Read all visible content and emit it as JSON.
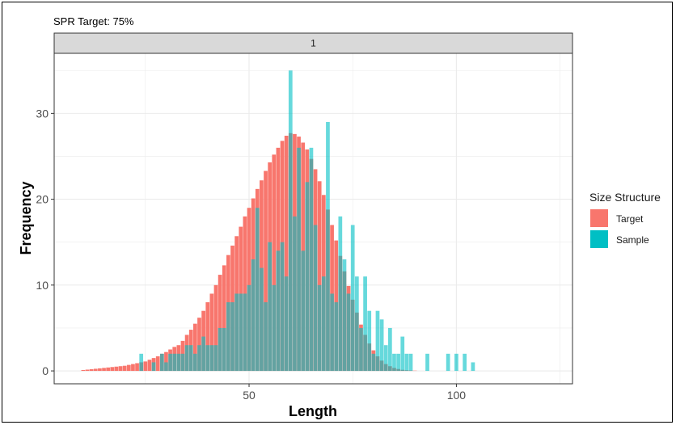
{
  "chart_data": {
    "type": "bar",
    "title": "SPR Target: 75%",
    "facet_label": "1",
    "xlabel": "Length",
    "ylabel": "Frequency",
    "xlim": [
      3,
      128
    ],
    "ylim": [
      -1.5,
      37
    ],
    "x_ticks": [
      50,
      100
    ],
    "y_ticks": [
      0,
      10,
      20,
      30
    ],
    "x_tick_labels": [
      "50",
      "100"
    ],
    "y_tick_labels": [
      "0",
      "10",
      "20",
      "30"
    ],
    "grid": true,
    "legend": {
      "title": "Size Structure",
      "position": "right"
    },
    "series": [
      {
        "name": "Target",
        "color": "#F8766D",
        "x": [
          10,
          11,
          12,
          13,
          14,
          15,
          16,
          17,
          18,
          19,
          20,
          21,
          22,
          23,
          24,
          25,
          26,
          27,
          28,
          29,
          30,
          31,
          32,
          33,
          34,
          35,
          36,
          37,
          38,
          39,
          40,
          41,
          42,
          43,
          44,
          45,
          46,
          47,
          48,
          49,
          50,
          51,
          52,
          53,
          54,
          55,
          56,
          57,
          58,
          59,
          60,
          61,
          62,
          63,
          64,
          65,
          66,
          67,
          68,
          69,
          70,
          71,
          72,
          73,
          74,
          75,
          76,
          77,
          78,
          79,
          80,
          81,
          82,
          83,
          84,
          85,
          86,
          87,
          88,
          89,
          90
        ],
        "values": [
          0.1,
          0.15,
          0.2,
          0.25,
          0.3,
          0.35,
          0.4,
          0.45,
          0.5,
          0.55,
          0.6,
          0.7,
          0.8,
          0.9,
          1.0,
          1.1,
          1.3,
          1.5,
          1.7,
          2.0,
          2.2,
          2.5,
          2.8,
          3.0,
          3.5,
          4.2,
          4.8,
          5.5,
          6.2,
          7.0,
          8.0,
          9.0,
          10.0,
          11.2,
          12.3,
          13.5,
          14.6,
          15.7,
          16.8,
          18.0,
          19.0,
          20.1,
          21.2,
          22.2,
          23.3,
          24.3,
          25.2,
          26.0,
          26.8,
          27.4,
          27.7,
          27.6,
          27.3,
          26.6,
          25.8,
          24.7,
          23.5,
          22.1,
          20.5,
          18.8,
          17.0,
          15.2,
          13.4,
          11.6,
          9.9,
          8.3,
          6.8,
          5.4,
          4.2,
          3.2,
          2.4,
          1.7,
          1.2,
          0.8,
          0.55,
          0.35,
          0.22,
          0.13,
          0.08,
          0.05,
          0.03
        ]
      },
      {
        "name": "Sample",
        "color": "#00BFC4",
        "x": [
          24,
          27,
          29,
          30,
          31,
          32,
          33,
          34,
          35,
          36,
          37,
          38,
          39,
          40,
          41,
          42,
          43,
          44,
          45,
          46,
          47,
          48,
          49,
          50,
          51,
          52,
          53,
          54,
          55,
          56,
          57,
          58,
          59,
          60,
          61,
          62,
          63,
          64,
          65,
          66,
          67,
          68,
          69,
          70,
          71,
          72,
          73,
          74,
          75,
          76,
          77,
          78,
          79,
          80,
          81,
          82,
          83,
          84,
          85,
          86,
          87,
          88,
          89,
          93,
          98,
          100,
          102,
          104
        ],
        "values": [
          2,
          1,
          2,
          1,
          2,
          2,
          2,
          2,
          3,
          3,
          2,
          3,
          4,
          3,
          3,
          3,
          5,
          5,
          8,
          8,
          9,
          9,
          9,
          10,
          13,
          19,
          12,
          8,
          15,
          10,
          14,
          15,
          11,
          35,
          18,
          26,
          14,
          22,
          26,
          17,
          10,
          11,
          29,
          9,
          8,
          18,
          13,
          9,
          17,
          11,
          5,
          11,
          7,
          2,
          7,
          6,
          3,
          5,
          2,
          2,
          4,
          2,
          2,
          2,
          2,
          2,
          2,
          1
        ]
      }
    ]
  }
}
